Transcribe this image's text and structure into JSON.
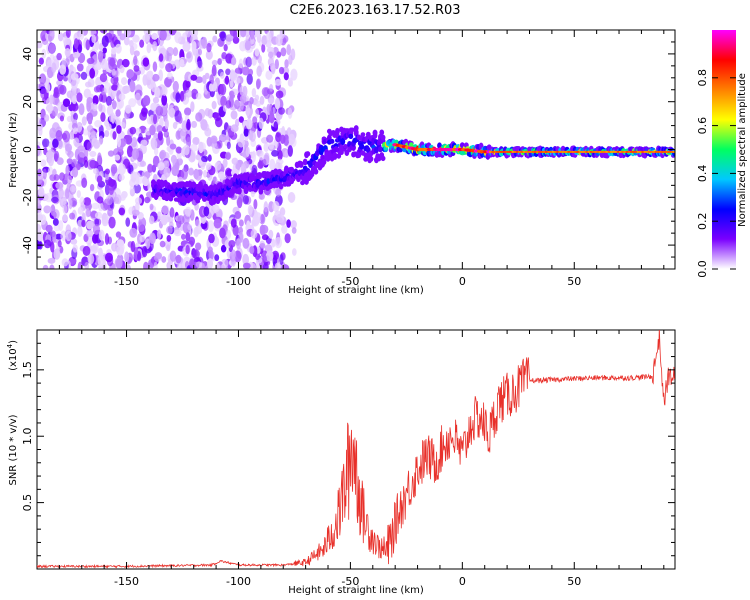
{
  "title": "C2E6.2023.163.17.52.R03",
  "chart_data": [
    {
      "type": "heatmap",
      "xlabel": "Height of straight line (km)",
      "ylabel": "Frequency (Hz)",
      "xlim": [
        -190,
        95
      ],
      "ylim": [
        -50,
        50
      ],
      "xticks": [
        -150,
        -100,
        -50,
        0,
        50
      ],
      "yticks": [
        -40,
        -20,
        0,
        20,
        40
      ],
      "colorbar": {
        "label": "Normalized spectral amplitude",
        "range": [
          0,
          1
        ],
        "ticks": [
          "0.0",
          "0.2",
          "0.4",
          "0.6",
          "0.8"
        ],
        "tick_values": [
          0.0,
          0.2,
          0.4,
          0.6,
          0.8
        ],
        "colormap": [
          "#ffffff",
          "#7a00ff",
          "#0000ff",
          "#00c8ff",
          "#00ff60",
          "#ffff00",
          "#ff8000",
          "#ff0000",
          "#ff00ff"
        ]
      },
      "ridge": {
        "x": [
          -135,
          -120,
          -110,
          -100,
          -90,
          -80,
          -70,
          -60,
          -50,
          -40,
          -30,
          -20,
          -10,
          0,
          10,
          20,
          40,
          60,
          80,
          95
        ],
        "y": [
          -17,
          -18,
          -19,
          -14,
          -14,
          -12,
          -8,
          2,
          4,
          1,
          2,
          0,
          0,
          0,
          -1,
          -1,
          -1,
          -1,
          -1,
          -1
        ]
      }
    },
    {
      "type": "line",
      "xlabel": "Height of straight line (km)",
      "ylabel": "SNR (10 * v/v)",
      "scale_label": "(x10",
      "scale_exponent": "4",
      "scale_suffix": ")",
      "xlim": [
        -190,
        95
      ],
      "ylim": [
        0,
        1.8
      ],
      "xticks": [
        -150,
        -100,
        -50,
        0,
        50
      ],
      "yticks": [
        0.5,
        1.0,
        1.5
      ],
      "ytick_labels": [
        "0.5",
        "1.0",
        "1.5"
      ],
      "series": [
        {
          "color": "#e8302a",
          "x": [
            -190,
            -150,
            -112,
            -108,
            -100,
            -90,
            -80,
            -70,
            -62,
            -56,
            -52,
            -49,
            -47,
            -45,
            -42,
            -38,
            -34,
            -32,
            -28,
            -24,
            -20,
            -16,
            -12,
            -8,
            -4,
            0,
            4,
            8,
            12,
            16,
            20,
            24,
            28,
            35,
            45,
            60,
            75,
            85,
            88,
            90,
            92,
            95
          ],
          "y": [
            0.02,
            0.02,
            0.03,
            0.06,
            0.03,
            0.03,
            0.03,
            0.05,
            0.15,
            0.35,
            0.65,
            0.95,
            0.7,
            0.45,
            0.3,
            0.18,
            0.12,
            0.22,
            0.45,
            0.6,
            0.75,
            0.85,
            0.8,
            0.95,
            1.0,
            0.85,
            1.1,
            1.15,
            1.0,
            1.25,
            1.3,
            1.35,
            1.42,
            1.42,
            1.43,
            1.44,
            1.44,
            1.45,
            1.75,
            1.25,
            1.45,
            1.45
          ]
        }
      ]
    }
  ]
}
